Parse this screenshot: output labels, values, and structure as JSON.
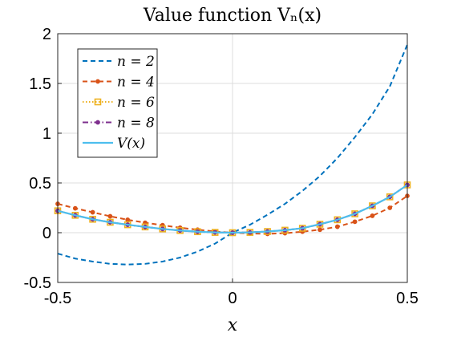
{
  "chart_data": {
    "type": "line",
    "title": "Value function Vₙ(x)",
    "xlabel": "x",
    "ylabel": "",
    "xlim": [
      -0.5,
      0.5
    ],
    "ylim": [
      -0.5,
      2
    ],
    "xticks": [
      -0.5,
      0,
      0.5
    ],
    "xtick_labels": [
      "-0.5",
      "0",
      "0.5"
    ],
    "yticks": [
      -0.5,
      0,
      0.5,
      1,
      1.5,
      2
    ],
    "ytick_labels": [
      "-0.5",
      "0",
      "0.5",
      "1",
      "1.5",
      "2"
    ],
    "grid": true,
    "legend_position": "top-left",
    "x": [
      -0.5,
      -0.45,
      -0.4,
      -0.35,
      -0.3,
      -0.25,
      -0.2,
      -0.15,
      -0.1,
      -0.05,
      0,
      0.05,
      0.1,
      0.15,
      0.2,
      0.25,
      0.3,
      0.35,
      0.4,
      0.45,
      0.5
    ],
    "series": [
      {
        "name": "n = 2",
        "color": "#0072BD",
        "style": "dashed",
        "marker": "none",
        "values": [
          -0.21,
          -0.26,
          -0.29,
          -0.313,
          -0.32,
          -0.313,
          -0.29,
          -0.25,
          -0.19,
          -0.11,
          0.0,
          0.08,
          0.18,
          0.29,
          0.42,
          0.57,
          0.75,
          0.96,
          1.19,
          1.47,
          1.89
        ]
      },
      {
        "name": "n = 4",
        "color": "#D95319",
        "style": "dashed",
        "marker": "dot",
        "values": [
          0.29,
          0.245,
          0.205,
          0.165,
          0.13,
          0.1,
          0.075,
          0.05,
          0.03,
          0.012,
          0.0,
          -0.008,
          -0.012,
          -0.005,
          0.01,
          0.03,
          0.06,
          0.11,
          0.17,
          0.25,
          0.37
        ]
      },
      {
        "name": "n = 6",
        "color": "#EDB120",
        "style": "dotted",
        "marker": "square",
        "values": [
          0.22,
          0.175,
          0.135,
          0.105,
          0.08,
          0.058,
          0.038,
          0.022,
          0.01,
          0.003,
          0.0,
          0.003,
          0.012,
          0.025,
          0.045,
          0.085,
          0.13,
          0.19,
          0.27,
          0.36,
          0.48
        ]
      },
      {
        "name": "n = 8",
        "color": "#7E2F8E",
        "style": "dashdot",
        "marker": "dot",
        "values": [
          0.22,
          0.175,
          0.135,
          0.105,
          0.08,
          0.058,
          0.038,
          0.022,
          0.01,
          0.003,
          0.0,
          0.003,
          0.012,
          0.025,
          0.045,
          0.085,
          0.13,
          0.19,
          0.27,
          0.36,
          0.48
        ]
      },
      {
        "name": "V(x)",
        "color": "#4DBEEE",
        "style": "solid",
        "marker": "none",
        "values": [
          0.22,
          0.175,
          0.135,
          0.105,
          0.08,
          0.058,
          0.038,
          0.022,
          0.01,
          0.003,
          0.0,
          0.003,
          0.012,
          0.025,
          0.045,
          0.085,
          0.13,
          0.19,
          0.27,
          0.36,
          0.48
        ]
      }
    ]
  }
}
